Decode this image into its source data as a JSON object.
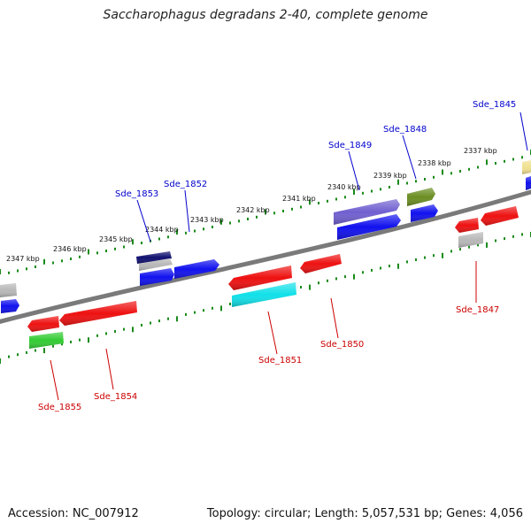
{
  "header": {
    "title": "Saccharophagus degradans 2-40, complete genome"
  },
  "footer": {
    "accession": "Accession: NC_007912",
    "topology": "Topology: circular; Length: 5,057,531 bp; Genes: 4,056"
  },
  "scale_labels": [
    "2337 kbp",
    "2338 kbp",
    "2339 kbp",
    "2340 kbp",
    "2341 kbp",
    "2342 kbp",
    "2343 kbp",
    "2344 kbp",
    "2345 kbp",
    "2346 kbp",
    "2347 kbp"
  ],
  "genes": [
    {
      "name": "Sde_1845",
      "strand": "plus"
    },
    {
      "name": "Sde_1847",
      "strand": "minus"
    },
    {
      "name": "Sde_1848",
      "strand": "plus"
    },
    {
      "name": "Sde_1849",
      "strand": "plus"
    },
    {
      "name": "Sde_1850",
      "strand": "minus"
    },
    {
      "name": "Sde_1851",
      "strand": "minus"
    },
    {
      "name": "Sde_1852",
      "strand": "plus"
    },
    {
      "name": "Sde_1853",
      "strand": "plus"
    },
    {
      "name": "Sde_1854",
      "strand": "minus"
    },
    {
      "name": "Sde_1855",
      "strand": "minus"
    }
  ],
  "colors": {
    "plus_label": "#0000cc",
    "minus_label": "#cc0000",
    "backbone": "#7a7a7a",
    "tick": "#1a8a1a",
    "feature_red": "#ee1111",
    "feature_blue": "#1111ee",
    "feature_navy": "#101070",
    "feature_purple": "#7060d0",
    "feature_olive": "#6b8e23",
    "feature_cyan": "#11e0e8",
    "feature_green": "#33cc33",
    "feature_grey": "#b8b8b8",
    "feature_khaki": "#f0e090"
  }
}
